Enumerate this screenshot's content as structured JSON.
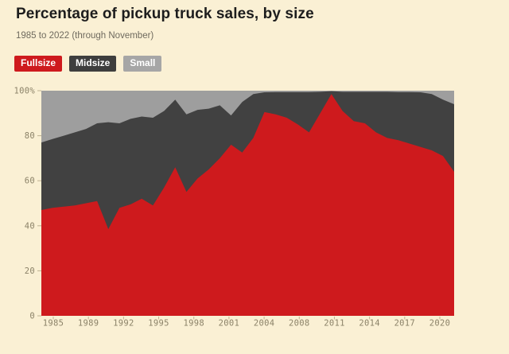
{
  "page": {
    "background": "#FAF0D4"
  },
  "header": {
    "title": "Percentage of pickup truck sales, by size",
    "subtitle": "1985 to 2022 (through November)"
  },
  "legend": {
    "items": [
      {
        "label": "Fullsize",
        "color": "#CE1A1D",
        "text_color": "#FFFFFF"
      },
      {
        "label": "Midsize",
        "color": "#3E3E3E",
        "text_color": "#FFFFFF"
      },
      {
        "label": "Small",
        "color": "#A6A6A6",
        "text_color": "#FFFFFF"
      }
    ]
  },
  "chart_data": {
    "type": "area",
    "stacked": true,
    "unit": "%",
    "title": "Percentage of pickup truck sales, by size",
    "subtitle": "1985 to 2022 (through November)",
    "grid": false,
    "legend_position": "top",
    "ylim": [
      0,
      100
    ],
    "x": [
      1985,
      1986,
      1987,
      1988,
      1989,
      1990,
      1991,
      1992,
      1993,
      1994,
      1995,
      1996,
      1997,
      1998,
      1999,
      2000,
      2001,
      2002,
      2003,
      2004,
      2005,
      2006,
      2007,
      2008,
      2009,
      2010,
      2011,
      2012,
      2013,
      2014,
      2015,
      2016,
      2017,
      2018,
      2019,
      2020,
      2021,
      2022
    ],
    "series": [
      {
        "name": "Fullsize",
        "color": "#CE1A1D",
        "values": [
          47,
          48,
          48.5,
          49,
          50,
          51,
          38.5,
          48,
          49.5,
          52,
          49,
          57,
          66,
          55,
          61,
          65,
          70,
          76,
          72.5,
          79,
          90.5,
          89.5,
          88,
          85,
          81.5,
          90,
          98.5,
          91,
          86.5,
          85.5,
          81.5,
          79,
          78,
          76.5,
          75,
          73.5,
          71,
          64
        ]
      },
      {
        "name": "Midsize",
        "color": "#414141",
        "values": [
          30,
          30.5,
          31.5,
          32.5,
          33,
          34.5,
          47.5,
          37.5,
          38,
          36.5,
          39,
          34,
          30,
          34.5,
          30.5,
          27,
          23.5,
          13,
          22.5,
          19.5,
          8.8,
          9.9,
          11.4,
          14.4,
          17.9,
          9.5,
          1.3,
          8.5,
          13,
          14,
          18,
          20.5,
          21.4,
          22.9,
          24.3,
          25,
          25,
          30
        ]
      },
      {
        "name": "Small",
        "color": "#9E9E9E",
        "values": [
          23,
          21.5,
          20,
          18.5,
          17,
          14.5,
          14,
          14.5,
          12.5,
          11.5,
          12,
          9,
          4,
          10.5,
          8.5,
          8,
          6.5,
          11,
          5,
          1.5,
          0.7,
          0.6,
          0.6,
          0.6,
          0.6,
          0.5,
          0.2,
          0.5,
          0.5,
          0.5,
          0.5,
          0.5,
          0.6,
          0.6,
          0.7,
          1.5,
          4,
          6
        ]
      }
    ],
    "x_tick_labels": [
      "1985",
      "1989",
      "1992",
      "1995",
      "1998",
      "2001",
      "2004",
      "2008",
      "2011",
      "2014",
      "2017",
      "2020"
    ],
    "y_ticks": [
      {
        "value": 0,
        "label": "0"
      },
      {
        "value": 20,
        "label": "20"
      },
      {
        "value": 40,
        "label": "40"
      },
      {
        "value": 60,
        "label": "60"
      },
      {
        "value": 80,
        "label": "80"
      },
      {
        "value": 100,
        "label": "100%"
      }
    ],
    "axis_label_color": "#8B8268",
    "tick_mark_color": "#BFB292"
  }
}
